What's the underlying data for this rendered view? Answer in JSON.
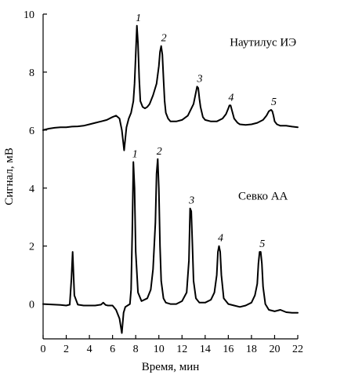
{
  "chart_data": {
    "type": "line",
    "title": "",
    "xlabel": "Время, мин",
    "ylabel": "Сигнал, мВ",
    "xlim": [
      0,
      22
    ],
    "ylim": [
      -1.2,
      10
    ],
    "xticks": [
      0,
      2,
      4,
      6,
      8,
      10,
      12,
      14,
      16,
      18,
      20,
      22
    ],
    "yticks": [
      0,
      2,
      4,
      6,
      8,
      10
    ],
    "grid": false,
    "series": [
      {
        "name": "Наутилус ИЭ",
        "x": [
          0,
          0.5,
          1,
          1.5,
          2,
          2.5,
          3,
          3.5,
          4,
          4.5,
          5,
          5.5,
          6,
          6.3,
          6.6,
          6.8,
          7.0,
          7.2,
          7.4,
          7.6,
          7.8,
          7.9,
          8.0,
          8.1,
          8.2,
          8.3,
          8.4,
          8.6,
          8.8,
          9.0,
          9.2,
          9.5,
          9.8,
          10.0,
          10.1,
          10.2,
          10.3,
          10.4,
          10.5,
          10.6,
          10.8,
          11.0,
          11.5,
          12.0,
          12.5,
          13.0,
          13.2,
          13.3,
          13.4,
          13.5,
          13.6,
          13.8,
          14.0,
          14.5,
          15.0,
          15.5,
          15.8,
          16.0,
          16.1,
          16.2,
          16.3,
          16.5,
          16.8,
          17.0,
          17.5,
          18.0,
          18.5,
          19.0,
          19.3,
          19.5,
          19.7,
          19.8,
          19.9,
          20.0,
          20.2,
          20.5,
          21.0,
          21.5,
          22.0
        ],
        "y": [
          6.0,
          6.05,
          6.08,
          6.1,
          6.1,
          6.12,
          6.13,
          6.15,
          6.2,
          6.25,
          6.3,
          6.35,
          6.45,
          6.5,
          6.4,
          6.0,
          5.3,
          6.1,
          6.4,
          6.6,
          7.0,
          7.6,
          8.6,
          9.6,
          9.0,
          7.8,
          7.0,
          6.8,
          6.75,
          6.8,
          6.9,
          7.2,
          7.6,
          8.2,
          8.7,
          8.9,
          8.6,
          7.8,
          7.0,
          6.6,
          6.4,
          6.3,
          6.3,
          6.35,
          6.5,
          6.9,
          7.3,
          7.5,
          7.45,
          7.1,
          6.8,
          6.45,
          6.35,
          6.3,
          6.3,
          6.4,
          6.55,
          6.75,
          6.85,
          6.85,
          6.7,
          6.4,
          6.25,
          6.2,
          6.18,
          6.2,
          6.25,
          6.35,
          6.5,
          6.65,
          6.7,
          6.65,
          6.5,
          6.3,
          6.2,
          6.15,
          6.15,
          6.12,
          6.1
        ]
      },
      {
        "name": "Севко АА",
        "x": [
          0,
          0.5,
          1,
          1.5,
          2,
          2.3,
          2.45,
          2.55,
          2.7,
          3.0,
          3.5,
          4.0,
          4.5,
          5.0,
          5.2,
          5.4,
          5.6,
          6.0,
          6.3,
          6.6,
          6.8,
          6.95,
          7.1,
          7.3,
          7.5,
          7.6,
          7.7,
          7.8,
          7.9,
          8.0,
          8.2,
          8.5,
          9.0,
          9.3,
          9.5,
          9.7,
          9.8,
          9.9,
          10.0,
          10.1,
          10.2,
          10.4,
          10.6,
          11.0,
          11.5,
          12.0,
          12.4,
          12.6,
          12.7,
          12.8,
          12.9,
          13.0,
          13.2,
          13.5,
          14.0,
          14.5,
          14.8,
          15.0,
          15.1,
          15.2,
          15.3,
          15.4,
          15.6,
          16.0,
          16.5,
          17.0,
          17.5,
          18.0,
          18.3,
          18.5,
          18.6,
          18.7,
          18.8,
          18.9,
          19.0,
          19.2,
          19.5,
          20.0,
          20.5,
          21.0,
          21.5,
          22.0
        ],
        "y": [
          0.0,
          -0.01,
          -0.02,
          -0.03,
          -0.05,
          -0.02,
          0.9,
          1.8,
          0.3,
          -0.02,
          -0.05,
          -0.05,
          -0.05,
          -0.02,
          0.05,
          -0.03,
          -0.05,
          -0.05,
          -0.2,
          -0.5,
          -1.0,
          -0.3,
          -0.1,
          -0.05,
          0.0,
          0.5,
          2.5,
          4.9,
          4.0,
          1.8,
          0.4,
          0.1,
          0.2,
          0.5,
          1.2,
          2.8,
          4.5,
          5.0,
          4.0,
          2.0,
          0.8,
          0.2,
          0.05,
          0.0,
          0.0,
          0.1,
          0.4,
          1.5,
          3.3,
          3.2,
          2.0,
          0.8,
          0.2,
          0.05,
          0.05,
          0.15,
          0.4,
          1.0,
          1.8,
          2.0,
          1.8,
          1.0,
          0.2,
          0.0,
          -0.05,
          -0.1,
          -0.05,
          0.05,
          0.3,
          0.7,
          1.4,
          1.8,
          1.8,
          1.4,
          0.6,
          0.0,
          -0.2,
          -0.25,
          -0.2,
          -0.28,
          -0.3,
          -0.3
        ]
      }
    ],
    "series_labels": [
      "Наутилус ИЭ",
      "Севко АА"
    ],
    "peak_labels": [
      {
        "text": "1",
        "x": 8.1,
        "y": 9.6
      },
      {
        "text": "2",
        "x": 10.3,
        "y": 8.9
      },
      {
        "text": "3",
        "x": 13.4,
        "y": 7.5
      },
      {
        "text": "4",
        "x": 16.1,
        "y": 6.85
      },
      {
        "text": "5",
        "x": 19.8,
        "y": 6.7
      },
      {
        "text": "1",
        "x": 7.8,
        "y": 4.9
      },
      {
        "text": "2",
        "x": 9.9,
        "y": 5.0
      },
      {
        "text": "3",
        "x": 12.7,
        "y": 3.3
      },
      {
        "text": "4",
        "x": 15.2,
        "y": 2.0
      },
      {
        "text": "5",
        "x": 18.8,
        "y": 1.8
      }
    ]
  }
}
